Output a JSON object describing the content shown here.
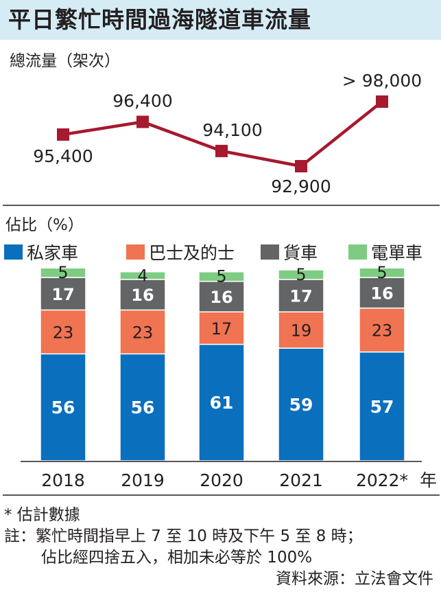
{
  "title": "平日繁忙時間過海隧道車流量",
  "chart_data": [
    {
      "type": "line",
      "ylabel": "總流量（架次）",
      "x": [
        "2018",
        "2019",
        "2020",
        "2021",
        "2022*"
      ],
      "values": [
        95400,
        96400,
        94100,
        92900,
        98000
      ],
      "labels": [
        "95,400",
        "96,400",
        "94,100",
        "92,900",
        "> 98,000"
      ],
      "color": "#a6192e"
    },
    {
      "type": "bar",
      "stacked": true,
      "ylabel": "佔比（%）",
      "categories": [
        "2018",
        "2019",
        "2020",
        "2021",
        "2022*"
      ],
      "category_suffix": "年",
      "legend_position": "top",
      "series": [
        {
          "name": "私家車",
          "color": "#0a6fbd",
          "values": [
            56,
            56,
            61,
            59,
            57
          ]
        },
        {
          "name": "巴士及的士",
          "color": "#f07352",
          "values": [
            23,
            23,
            17,
            19,
            23
          ]
        },
        {
          "name": "貨車",
          "color": "#636466",
          "values": [
            17,
            16,
            16,
            17,
            16
          ]
        },
        {
          "name": "電單車",
          "color": "#7dcc82",
          "values": [
            5,
            4,
            5,
            5,
            5
          ]
        }
      ]
    }
  ],
  "notes": {
    "estimate": "* 估計數據",
    "line1": "註：繁忙時間指早上 7 至 10 時及下午 5 至 8 時；",
    "line2": "佔比經四捨五入，相加未必等於 100%",
    "source": "資料來源：立法會文件"
  }
}
